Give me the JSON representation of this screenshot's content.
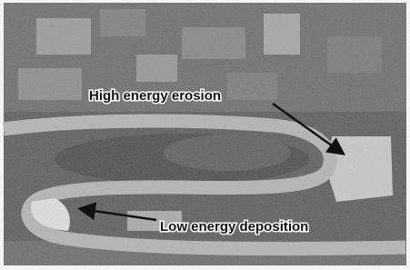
{
  "annotations": [
    {
      "label": "High energy erosion"
    },
    {
      "label": "Low energy deposition"
    }
  ]
}
